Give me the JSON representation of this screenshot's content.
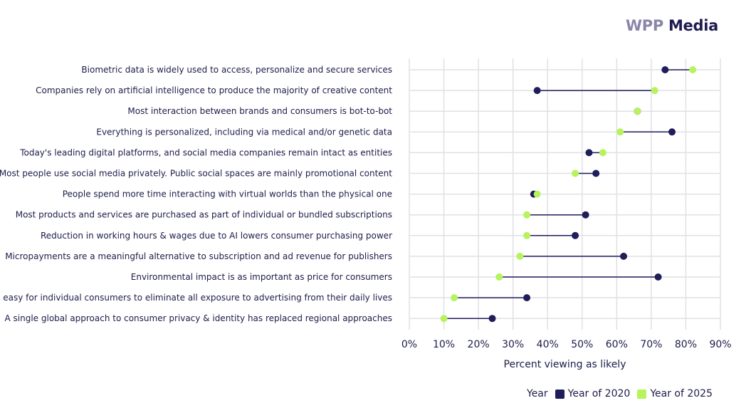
{
  "brand": {
    "part1": "WPP",
    "part2": "Media"
  },
  "chart_data": {
    "type": "dumbbell",
    "xlabel": "Percent viewing as likely",
    "xlim": [
      0,
      90
    ],
    "xticks": [
      0,
      10,
      20,
      30,
      40,
      50,
      60,
      70,
      80,
      90
    ],
    "xtick_labels": [
      "0%",
      "10%",
      "20%",
      "30%",
      "40%",
      "50%",
      "60%",
      "70%",
      "80%",
      "90%"
    ],
    "legend_title": "Year",
    "series": [
      {
        "name": "Year of 2020",
        "color": "#1f1d5a"
      },
      {
        "name": "Year of 2025",
        "color": "#b6f35c"
      }
    ],
    "categories": [
      "Biometric data is widely used to access, personalize and secure services",
      "Companies rely on artificial intelligence to produce the majority of creative content",
      "Most interaction between brands and consumers is bot-to-bot",
      "Everything is personalized, including via medical and/or genetic data",
      "Today's leading digital platforms, and social media companies remain intact as entities",
      "Most people use social media privately. Public social spaces are mainly promotional content",
      "People spend more time interacting with virtual worlds than the physical one",
      "Most products and services are purchased as part of individual or bundled subscriptions",
      "Reduction in working hours & wages due to AI lowers consumer purchasing power",
      "Micropayments are a meaningful alternative to subscription and ad revenue for publishers",
      "Environmental impact is as important as price for consumers",
      "It is easy for individual consumers to eliminate all exposure to advertising from their daily lives",
      "A single global approach to consumer privacy & identity has replaced regional approaches"
    ],
    "values_2020": [
      74,
      37,
      66,
      76,
      52,
      54,
      36,
      51,
      48,
      62,
      72,
      34,
      24
    ],
    "values_2025": [
      82,
      71,
      66,
      61,
      56,
      48,
      37,
      34,
      34,
      32,
      26,
      13,
      10
    ]
  }
}
